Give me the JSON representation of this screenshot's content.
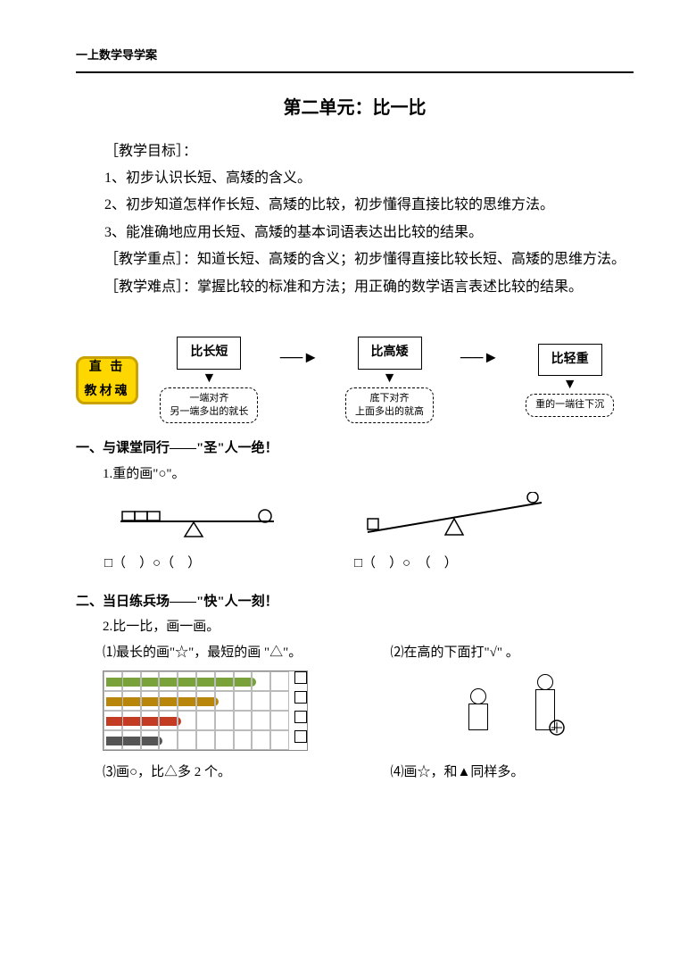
{
  "header": "一上数学导学案",
  "title": "第二单元：比一比",
  "goals_label": "［教学目标］：",
  "goals": {
    "g1": "1、初步认识长短、高矮的含义。",
    "g2": "2、初步知道怎样作长短、高矮的比较，初步懂得直接比较的思维方法。",
    "g3": "3、能准确地应用长短、高矮的基本词语表达出比较的结果。"
  },
  "focus_label": "［教学重点］：",
  "focus_text": "知道长短、高矮的含义；初步懂得直接比较长短、高矮的思维方法。",
  "difficulty_label": "［教学难点］：",
  "difficulty_text": "掌握比较的标准和方法；用正确的数学语言表述比较的结果。",
  "badge": {
    "line1": "直  击",
    "line2": "教材魂"
  },
  "flow": {
    "nodes": [
      {
        "title": "比长短",
        "desc": "一端对齐\n另一端多出的就长"
      },
      {
        "title": "比高矮",
        "desc": "底下对齐\n上面多出的就高"
      },
      {
        "title": "比轻重",
        "desc": "重的一端往下沉"
      }
    ],
    "node_border": "#000000",
    "desc_border": "#000000",
    "arrow": "→"
  },
  "section1": {
    "head": "一、与课堂同行——\"圣\"人一绝！",
    "q1": "1.重的画\"○\"。",
    "ans_left": "□（　）○（　）",
    "ans_right": "□（　）○　（　）"
  },
  "section2": {
    "head": "二、当日练兵场——\"快\"人一刻！",
    "q2": "2.比一比，画一画。",
    "sub1": "⑴最长的画\"☆\"，最短的画 \"△\"。",
    "sub2": "⑵在高的下面打\"√\" 。",
    "sub3": "⑶画○，比△多 2 个。",
    "sub4": "⑷画☆，和▲同样多。"
  },
  "pencils": {
    "rows": 4,
    "cols": 10,
    "bars": [
      {
        "row": 0,
        "span": 8,
        "color": "#7aa23a"
      },
      {
        "row": 1,
        "span": 6,
        "color": "#b8860b"
      },
      {
        "row": 2,
        "span": 4,
        "color": "#c23b22"
      },
      {
        "row": 3,
        "span": 3,
        "color": "#555555"
      }
    ]
  }
}
